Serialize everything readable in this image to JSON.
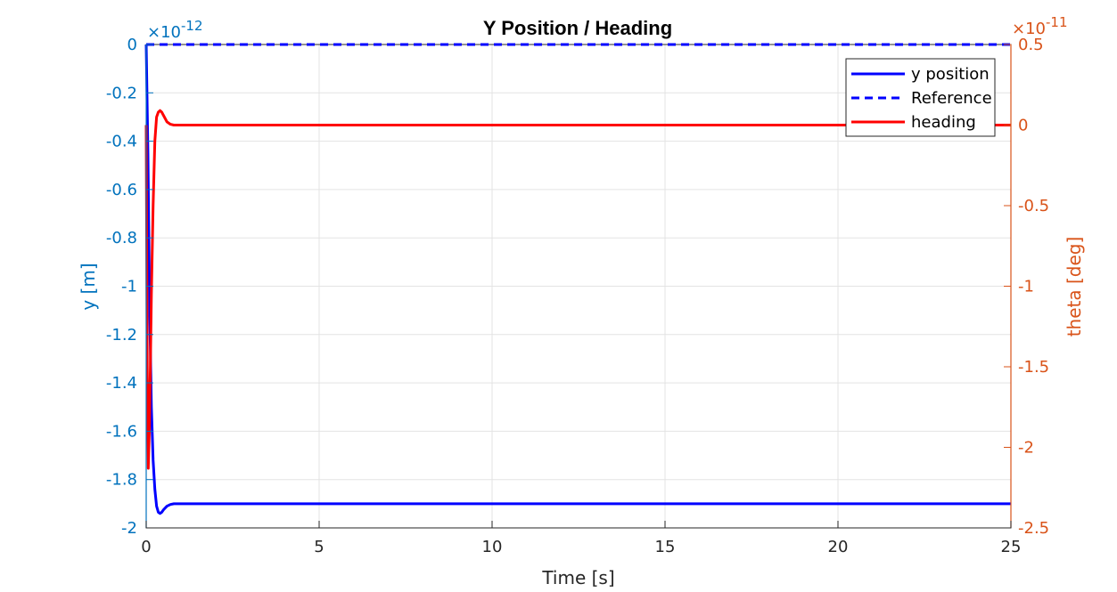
{
  "chart_data": {
    "type": "line",
    "title": "Y Position / Heading",
    "xlabel": "Time [s]",
    "ylabel_left": "y [m]",
    "ylabel_right": "theta [deg]",
    "xlim": [
      0,
      25
    ],
    "ylim_left": [
      -2e-12,
      0
    ],
    "ylim_right": [
      -2.5e-11,
      5e-12
    ],
    "grid": true,
    "legend_position": "top-right",
    "x_ticks": [
      "0",
      "5",
      "10",
      "15",
      "20",
      "25"
    ],
    "y_left_ticks": [
      "0",
      "-0.2",
      "-0.4",
      "-0.6",
      "-0.8",
      "-1",
      "-1.2",
      "-1.4",
      "-1.6",
      "-1.8",
      "-2"
    ],
    "y_right_ticks": [
      "0.5",
      "0",
      "-0.5",
      "-1",
      "-1.5",
      "-2",
      "-2.5"
    ],
    "y_left_exponent": {
      "base": "×10",
      "power": "-12"
    },
    "y_right_exponent": {
      "base": "×10",
      "power": "-11"
    },
    "colors": {
      "left_axis": "#0072BD",
      "right_axis": "#D95319",
      "y_position": "#0000FF",
      "reference": "#0000FF",
      "heading": "#FF0000"
    },
    "series": [
      {
        "name": "y position",
        "axis": "left",
        "style": "solid",
        "x": [
          0,
          0.05,
          0.1,
          0.15,
          0.2,
          0.25,
          0.3,
          0.35,
          0.4,
          0.45,
          0.5,
          0.6,
          0.7,
          0.8,
          1.0,
          1.5,
          25
        ],
        "y": [
          0,
          -4.5e-13,
          -1.1e-12,
          -1.5e-12,
          -1.72e-12,
          -1.84e-12,
          -1.91e-12,
          -1.935e-12,
          -1.94e-12,
          -1.935e-12,
          -1.925e-12,
          -1.91e-12,
          -1.903e-12,
          -1.9e-12,
          -1.9e-12,
          -1.9e-12,
          -1.9e-12
        ]
      },
      {
        "name": "Reference",
        "axis": "left",
        "style": "dashed",
        "x": [
          0,
          25
        ],
        "y": [
          0,
          0
        ]
      },
      {
        "name": "heading",
        "axis": "right",
        "style": "solid",
        "x": [
          0,
          0.03,
          0.06,
          0.09,
          0.12,
          0.15,
          0.2,
          0.25,
          0.3,
          0.35,
          0.4,
          0.45,
          0.5,
          0.55,
          0.6,
          0.7,
          0.8,
          1.0,
          1.5,
          25
        ],
        "y": [
          0,
          -1.5e-11,
          -2.13e-11,
          -1.9e-11,
          -1.5e-11,
          -1.05e-11,
          -5e-12,
          -1e-12,
          5e-13,
          8e-13,
          9e-13,
          8e-13,
          6e-13,
          4e-13,
          2e-13,
          5e-14,
          0,
          0,
          0,
          0
        ]
      }
    ],
    "legend": [
      "y position",
      "Reference",
      "heading"
    ]
  }
}
